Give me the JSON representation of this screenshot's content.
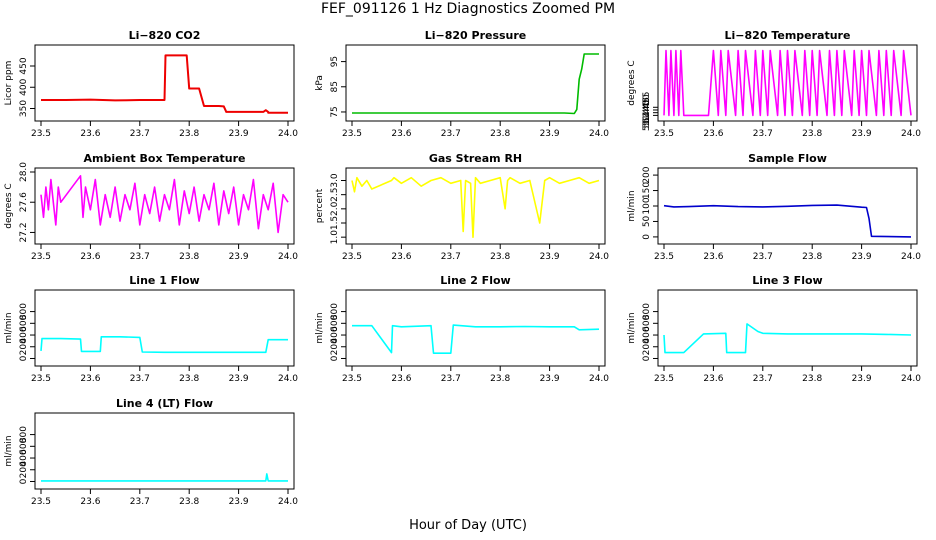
{
  "main_title": "FEF_091126  1 Hz Diagnostics Zoomed PM",
  "x_axis_title": "Hour of Day (UTC)",
  "colors": {
    "co2": "#ee0000",
    "pressure": "#00bb00",
    "temperature": "#ff00ff",
    "box_temp": "#ff00ff",
    "rh": "#ffff00",
    "sample_flow": "#0000cc",
    "line_flow": "#00ffff"
  },
  "chart_data": [
    {
      "id": "co2",
      "type": "line",
      "title": "Li−820 CO2",
      "xlabel": "",
      "ylabel": "Licor ppm",
      "xlim": [
        23.5,
        24.0
      ],
      "ylim": [
        330,
        490
      ],
      "xticks": [
        "23.5",
        "23.6",
        "23.7",
        "23.8",
        "23.9",
        "24.0"
      ],
      "yticks": [
        "350",
        "400",
        "450"
      ],
      "series": [
        {
          "color_key": "co2",
          "x": [
            23.5,
            23.55,
            23.6,
            23.65,
            23.7,
            23.75,
            23.752,
            23.795,
            23.8,
            23.82,
            23.83,
            23.86,
            23.87,
            23.875,
            23.95,
            23.955,
            23.96,
            23.96,
            23.965,
            24.0
          ],
          "y": [
            370,
            370,
            371,
            369,
            370,
            370,
            475,
            475,
            397,
            397,
            356,
            356,
            355,
            342,
            342,
            346,
            342,
            340,
            340,
            340
          ]
        }
      ]
    },
    {
      "id": "pressure",
      "type": "line",
      "title": "Li−820 Pressure",
      "xlabel": "",
      "ylabel": "kPa",
      "xlim": [
        23.5,
        24.0
      ],
      "ylim": [
        73,
        100
      ],
      "xticks": [
        "23.5",
        "23.6",
        "23.7",
        "23.8",
        "23.9",
        "24.0"
      ],
      "yticks": [
        "75",
        "85",
        "95"
      ],
      "series": [
        {
          "color_key": "pressure",
          "x": [
            23.5,
            23.93,
            23.95,
            23.955,
            23.96,
            23.965,
            23.97,
            24.0
          ],
          "y": [
            74.6,
            74.6,
            74.4,
            76,
            88,
            92,
            98,
            98
          ]
        }
      ]
    },
    {
      "id": "temperature",
      "type": "line",
      "title": "Li−820 Temperature",
      "xlabel": "",
      "ylabel": "degrees C",
      "xlim": [
        23.5,
        24.0
      ],
      "ylim": [
        51.437,
        51.563
      ],
      "xticks": [
        "23.5",
        "23.6",
        "23.7",
        "23.8",
        "23.9",
        "24.0"
      ],
      "yticks": [
        "51.440",
        "51.445",
        "51.450",
        "51.455"
      ],
      "note_sequence": "oscillates between 51.440 and 51.560",
      "series": [
        {
          "color_key": "temperature",
          "x": [
            23.5,
            23.504,
            23.51,
            23.514,
            23.52,
            23.524,
            23.53,
            23.534,
            23.54,
            23.544,
            23.59,
            23.6,
            23.61,
            23.615,
            23.625,
            23.63,
            23.645,
            23.65,
            23.66,
            23.665,
            23.68,
            23.685,
            23.695,
            23.7,
            23.71,
            23.715,
            23.73,
            23.735,
            23.745,
            23.75,
            23.76,
            23.765,
            23.78,
            23.785,
            23.795,
            23.8,
            23.81,
            23.815,
            23.83,
            23.835,
            23.845,
            23.85,
            23.86,
            23.865,
            23.88,
            23.885,
            23.895,
            23.9,
            23.91,
            23.915,
            23.93,
            23.935,
            23.945,
            23.95,
            23.96,
            23.965,
            23.98,
            23.985,
            24.0
          ],
          "y": [
            51.44,
            51.56,
            51.44,
            51.56,
            51.44,
            51.56,
            51.44,
            51.56,
            51.44,
            51.44,
            51.44,
            51.56,
            51.44,
            51.56,
            51.44,
            51.56,
            51.44,
            51.56,
            51.44,
            51.56,
            51.44,
            51.56,
            51.44,
            51.56,
            51.44,
            51.56,
            51.44,
            51.56,
            51.44,
            51.56,
            51.44,
            51.56,
            51.44,
            51.56,
            51.44,
            51.56,
            51.44,
            51.56,
            51.44,
            51.56,
            51.44,
            51.56,
            51.44,
            51.56,
            51.44,
            51.56,
            51.44,
            51.56,
            51.44,
            51.56,
            51.44,
            51.56,
            51.44,
            51.56,
            51.44,
            51.56,
            51.44,
            51.56,
            51.44
          ]
        }
      ]
    },
    {
      "id": "box_temp",
      "type": "line",
      "title": "Ambient Box Temperature",
      "xlabel": "",
      "ylabel": "degrees C",
      "xlim": [
        23.5,
        24.0
      ],
      "ylim": [
        27.1,
        28.0
      ],
      "xticks": [
        "23.5",
        "23.6",
        "23.7",
        "23.8",
        "23.9",
        "24.0"
      ],
      "yticks": [
        "27.2",
        "27.6",
        "28.0"
      ],
      "series": [
        {
          "color_key": "box_temp",
          "x": [
            23.5,
            23.505,
            23.51,
            23.515,
            23.52,
            23.525,
            23.53,
            23.535,
            23.54,
            23.58,
            23.585,
            23.59,
            23.6,
            23.61,
            23.62,
            23.63,
            23.64,
            23.65,
            23.66,
            23.67,
            23.68,
            23.69,
            23.7,
            23.71,
            23.72,
            23.73,
            23.74,
            23.75,
            23.76,
            23.77,
            23.78,
            23.79,
            23.8,
            23.81,
            23.82,
            23.83,
            23.84,
            23.85,
            23.86,
            23.87,
            23.88,
            23.89,
            23.9,
            23.91,
            23.92,
            23.93,
            23.94,
            23.95,
            23.96,
            23.97,
            23.98,
            23.99,
            24.0
          ],
          "y": [
            27.7,
            27.4,
            27.8,
            27.5,
            27.9,
            27.6,
            27.3,
            27.8,
            27.6,
            27.95,
            27.4,
            27.8,
            27.5,
            27.9,
            27.3,
            27.7,
            27.4,
            27.8,
            27.35,
            27.7,
            27.5,
            27.85,
            27.3,
            27.7,
            27.45,
            27.8,
            27.35,
            27.7,
            27.5,
            27.9,
            27.3,
            27.75,
            27.45,
            27.8,
            27.35,
            27.7,
            27.5,
            27.85,
            27.3,
            27.75,
            27.45,
            27.8,
            27.3,
            27.7,
            27.5,
            27.9,
            27.25,
            27.7,
            27.5,
            27.85,
            27.2,
            27.7,
            27.6
          ]
        }
      ]
    },
    {
      "id": "rh",
      "type": "line",
      "title": "Gas Stream RH",
      "xlabel": "",
      "ylabel": "percent",
      "xlim": [
        23.5,
        24.0
      ],
      "ylim": [
        0.9,
        3.3
      ],
      "xticks": [
        "23.5",
        "23.6",
        "23.7",
        "23.8",
        "23.9",
        "24.0"
      ],
      "yticks": [
        "1.0",
        "1.5",
        "2.0",
        "2.5",
        "3.0"
      ],
      "series": [
        {
          "color_key": "rh",
          "x": [
            23.5,
            23.505,
            23.51,
            23.52,
            23.53,
            23.54,
            23.58,
            23.585,
            23.6,
            23.62,
            23.64,
            23.66,
            23.68,
            23.7,
            23.72,
            23.725,
            23.73,
            23.74,
            23.745,
            23.75,
            23.76,
            23.78,
            23.8,
            23.81,
            23.815,
            23.82,
            23.84,
            23.86,
            23.88,
            23.89,
            23.9,
            23.92,
            23.94,
            23.96,
            23.98,
            24.0
          ],
          "y": [
            3.0,
            2.6,
            3.1,
            2.8,
            3.0,
            2.7,
            3.0,
            3.1,
            2.9,
            3.1,
            2.8,
            3.0,
            3.1,
            2.9,
            3.0,
            1.2,
            3.0,
            2.9,
            1.0,
            3.1,
            2.9,
            3.0,
            3.1,
            2.0,
            3.0,
            3.1,
            2.9,
            3.0,
            1.5,
            3.0,
            3.1,
            2.9,
            3.0,
            3.1,
            2.9,
            3.0
          ]
        }
      ]
    },
    {
      "id": "sample_flow",
      "type": "line",
      "title": "Sample Flow",
      "xlabel": "",
      "ylabel": "ml/min",
      "xlim": [
        23.5,
        24.0
      ],
      "ylim": [
        -10,
        210
      ],
      "xticks": [
        "23.5",
        "23.6",
        "23.7",
        "23.8",
        "23.9",
        "24.0"
      ],
      "yticks": [
        "0",
        "50",
        "100",
        "150",
        "200"
      ],
      "series": [
        {
          "color_key": "sample_flow",
          "x": [
            23.5,
            23.52,
            23.55,
            23.6,
            23.65,
            23.7,
            23.75,
            23.8,
            23.85,
            23.9,
            23.91,
            23.915,
            23.92,
            24.0
          ],
          "y": [
            101,
            97,
            98,
            101,
            98,
            97,
            99,
            102,
            103,
            96,
            95,
            60,
            2,
            0
          ]
        }
      ]
    },
    {
      "id": "line1",
      "type": "line",
      "title": "Line 1 Flow",
      "xlabel": "",
      "ylabel": "ml/min",
      "xlim": [
        23.5,
        24.0
      ],
      "ylim": [
        -60,
        1100
      ],
      "xticks": [
        "23.5",
        "23.6",
        "23.7",
        "23.8",
        "23.9",
        "24.0"
      ],
      "yticks": [
        "0",
        "200",
        "400",
        "600",
        "800"
      ],
      "series": [
        {
          "color_key": "line_flow",
          "x": [
            23.5,
            23.502,
            23.54,
            23.58,
            23.582,
            23.62,
            23.622,
            23.66,
            23.7,
            23.705,
            23.75,
            23.8,
            23.85,
            23.9,
            23.955,
            23.96,
            24.0
          ],
          "y": [
            130,
            340,
            340,
            330,
            120,
            120,
            370,
            370,
            360,
            110,
            105,
            105,
            105,
            105,
            105,
            320,
            320
          ]
        }
      ]
    },
    {
      "id": "line2",
      "type": "line",
      "title": "Line 2 Flow",
      "xlabel": "",
      "ylabel": "ml/min",
      "xlim": [
        23.5,
        24.0
      ],
      "ylim": [
        -60,
        1100
      ],
      "xticks": [
        "23.5",
        "23.6",
        "23.7",
        "23.8",
        "23.9",
        "24.0"
      ],
      "yticks": [
        "0",
        "200",
        "400",
        "600",
        "800"
      ],
      "series": [
        {
          "color_key": "line_flow",
          "x": [
            23.5,
            23.54,
            23.58,
            23.582,
            23.6,
            23.66,
            23.665,
            23.7,
            23.705,
            23.75,
            23.8,
            23.85,
            23.9,
            23.95,
            23.96,
            24.0
          ],
          "y": [
            560,
            560,
            100,
            560,
            540,
            560,
            90,
            90,
            570,
            540,
            540,
            545,
            540,
            540,
            490,
            500
          ]
        }
      ]
    },
    {
      "id": "line3",
      "type": "line",
      "title": "Line 3 Flow",
      "xlabel": "",
      "ylabel": "ml/min",
      "xlim": [
        23.5,
        24.0
      ],
      "ylim": [
        -60,
        1100
      ],
      "xticks": [
        "23.5",
        "23.6",
        "23.7",
        "23.8",
        "23.9",
        "24.0"
      ],
      "yticks": [
        "0",
        "200",
        "400",
        "600",
        "800"
      ],
      "series": [
        {
          "color_key": "line_flow",
          "x": [
            23.5,
            23.502,
            23.54,
            23.58,
            23.625,
            23.627,
            23.665,
            23.668,
            23.69,
            23.7,
            23.75,
            23.8,
            23.85,
            23.9,
            23.95,
            24.0
          ],
          "y": [
            400,
            100,
            100,
            420,
            430,
            100,
            100,
            590,
            460,
            430,
            420,
            420,
            420,
            420,
            410,
            400
          ]
        }
      ]
    },
    {
      "id": "line4",
      "type": "line",
      "title": "Line 4 (LT) Flow",
      "xlabel": "",
      "ylabel": "ml/min",
      "xlim": [
        23.5,
        24.0
      ],
      "ylim": [
        -60,
        1100
      ],
      "xticks": [
        "23.5",
        "23.6",
        "23.7",
        "23.8",
        "23.9",
        "24.0"
      ],
      "yticks": [
        "0",
        "200",
        "400",
        "600",
        "800"
      ],
      "series": [
        {
          "color_key": "line_flow",
          "x": [
            23.5,
            23.6,
            23.7,
            23.8,
            23.9,
            23.955,
            23.957,
            23.96,
            24.0
          ],
          "y": [
            10,
            10,
            10,
            10,
            10,
            10,
            130,
            10,
            10
          ]
        }
      ]
    }
  ]
}
